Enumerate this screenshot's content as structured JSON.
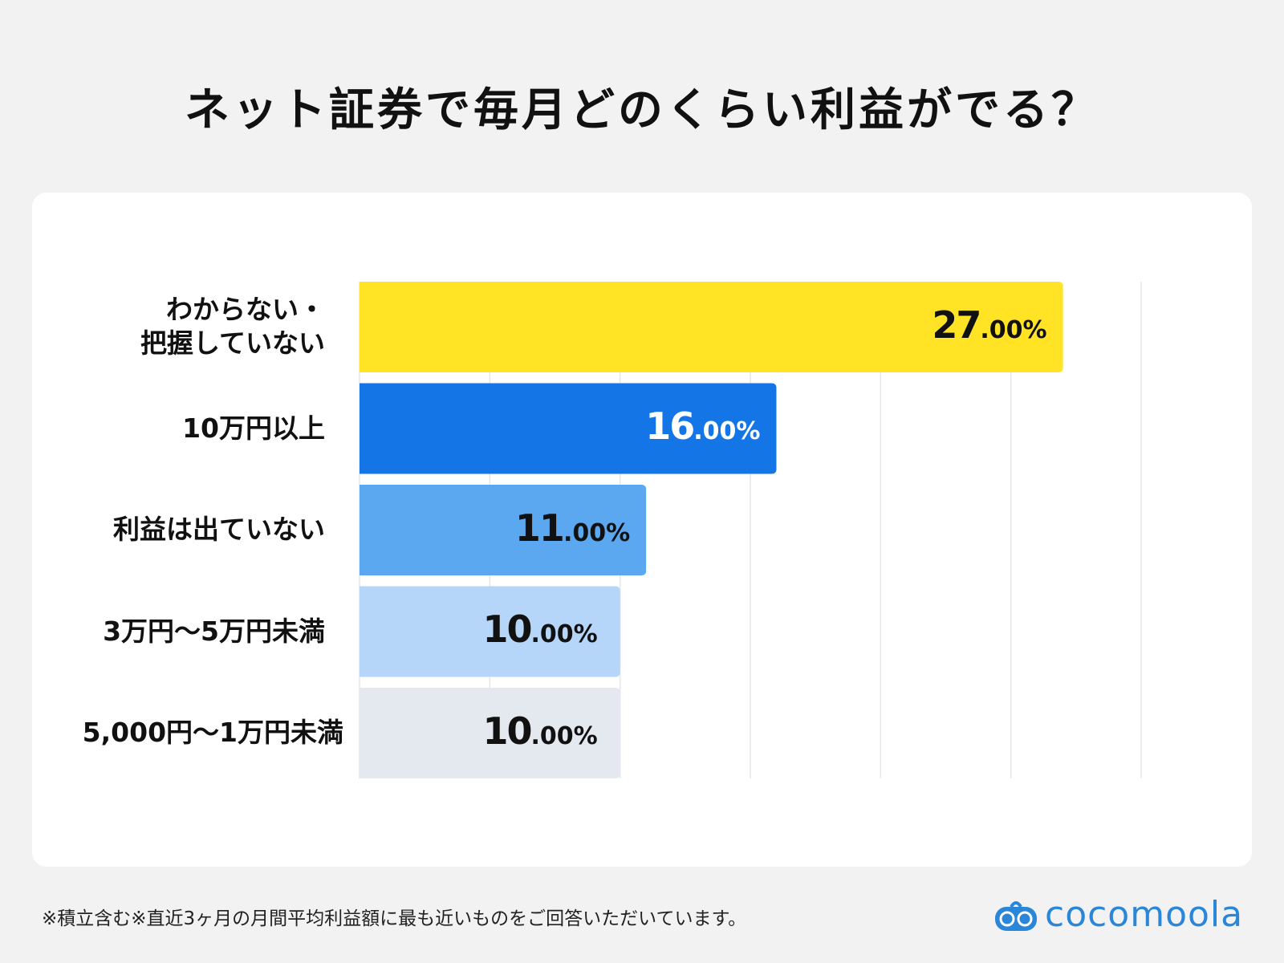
{
  "chart_data": {
    "type": "bar",
    "orientation": "horizontal",
    "title": "ネット証券で毎月どのくらい利益がでる？",
    "categories": [
      "わからない・\n把握していない",
      "10万円以上",
      "利益は出ていない",
      "3万円〜5万円未満",
      "5,000円〜1万円未満"
    ],
    "values": [
      27.0,
      16.0,
      11.0,
      10.0,
      10.0
    ],
    "value_labels": [
      {
        "int": "27",
        "dec": ".00%"
      },
      {
        "int": "16",
        "dec": ".00%"
      },
      {
        "int": "11",
        "dec": ".00%"
      },
      {
        "int": "10",
        "dec": ".00%"
      },
      {
        "int": "10",
        "dec": ".00%"
      }
    ],
    "colors": [
      "#FFE324",
      "#1476E6",
      "#5BA8F0",
      "#B5D6F8",
      "#E4E8EF"
    ],
    "label_colors": [
      "#111111",
      "#ffffff",
      "#111111",
      "#111111",
      "#111111"
    ],
    "xlim": [
      0,
      30
    ],
    "grid_step": 5,
    "grid": true,
    "xlabel": "",
    "ylabel": ""
  },
  "footnote": "※積立含む※直近3ヶ月の月間平均利益額に最も近いものをご回答いただいています。",
  "logo": {
    "text": "cocomoola",
    "color": "#2a86d8"
  }
}
